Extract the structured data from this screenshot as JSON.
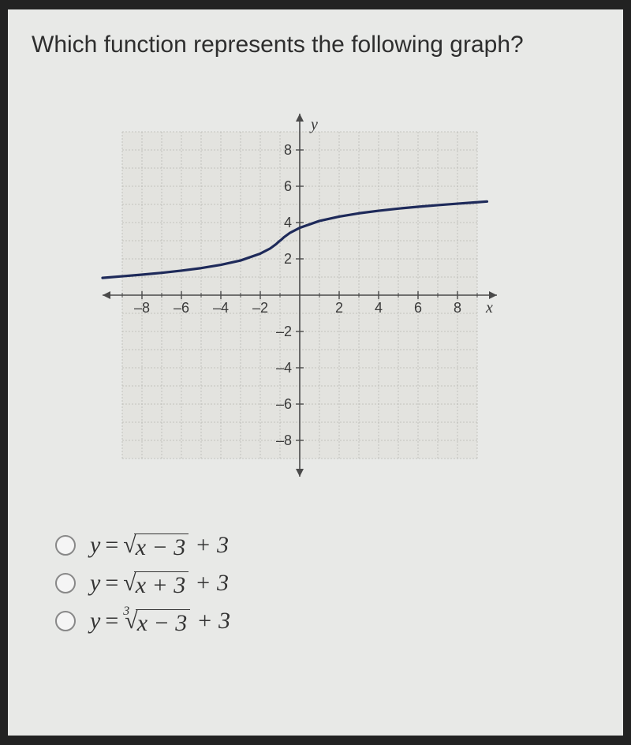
{
  "question": {
    "text": "Which function represents the following graph?"
  },
  "graph": {
    "type": "line",
    "xlim": [
      -10,
      10
    ],
    "ylim": [
      -10,
      10
    ],
    "xtick_labels": [
      -8,
      -6,
      -4,
      -2,
      2,
      4,
      6,
      8
    ],
    "ytick_labels": [
      -8,
      -6,
      -4,
      -2,
      2,
      4,
      6,
      8
    ],
    "x_axis_label": "x",
    "y_axis_label": "y",
    "gridarea_xlim": [
      -9,
      9
    ],
    "gridarea_ylim": [
      -9,
      9
    ],
    "grid_step": 1,
    "background_color": "#e8e9e7",
    "grid_color": "#b9b9b4",
    "minor_grid_dash": "2 2",
    "axis_color": "#4a4a4a",
    "curve_color": "#1e2a5a",
    "curve_width": 3.2,
    "label_fontsize": 18,
    "curve_points": [
      [
        -10,
        0.95
      ],
      [
        -9,
        1.04
      ],
      [
        -8,
        1.13
      ],
      [
        -7,
        1.23
      ],
      [
        -6,
        1.35
      ],
      [
        -5,
        1.49
      ],
      [
        -4,
        1.67
      ],
      [
        -3,
        1.91
      ],
      [
        -2,
        2.29
      ],
      [
        -1.5,
        2.57
      ],
      [
        -1.2,
        2.81
      ],
      [
        -1.05,
        2.96
      ],
      [
        -1,
        3
      ],
      [
        -0.95,
        3.04
      ],
      [
        -0.8,
        3.19
      ],
      [
        -0.5,
        3.43
      ],
      [
        0,
        3.71
      ],
      [
        1,
        4.09
      ],
      [
        2,
        4.33
      ],
      [
        3,
        4.51
      ],
      [
        4,
        4.65
      ],
      [
        5,
        4.77
      ],
      [
        6,
        4.87
      ],
      [
        7,
        4.96
      ],
      [
        8,
        5.04
      ],
      [
        9,
        5.12
      ],
      [
        9.5,
        5.16
      ]
    ]
  },
  "options": [
    {
      "y": "y",
      "eq": "=",
      "root_index": "",
      "radicand": "x − 3",
      "tail": "+ 3"
    },
    {
      "y": "y",
      "eq": "=",
      "root_index": "",
      "radicand": "x + 3",
      "tail": "+ 3"
    },
    {
      "y": "y",
      "eq": "=",
      "root_index": "3",
      "radicand": "x − 3",
      "tail": "+ 3"
    }
  ]
}
